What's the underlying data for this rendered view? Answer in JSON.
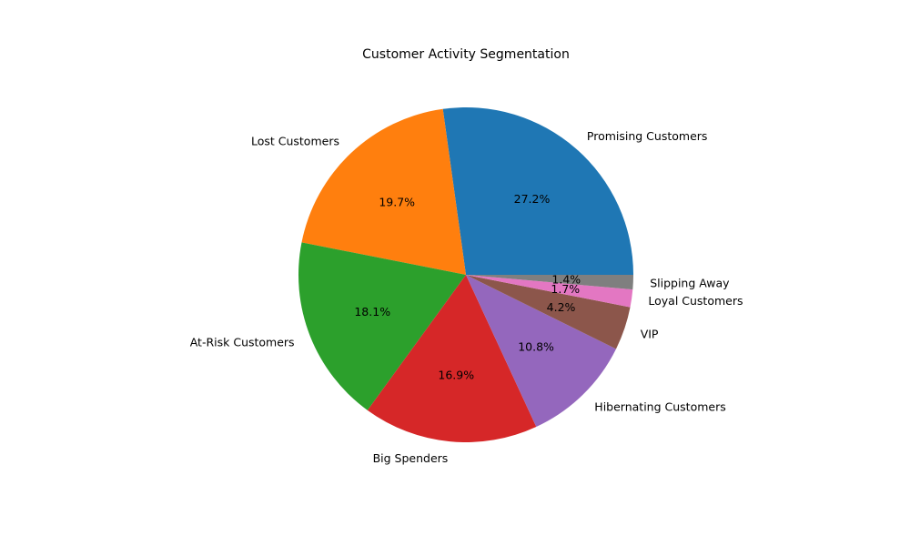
{
  "chart_data": {
    "type": "pie",
    "title": "Customer Activity Segmentation",
    "start_angle_deg": 0,
    "direction": "counterclockwise",
    "slices": [
      {
        "label": "Promising Customers",
        "value": 27.2,
        "pct_label": "27.2%",
        "color": "#1f77b4"
      },
      {
        "label": "Lost Customers",
        "value": 19.7,
        "pct_label": "19.7%",
        "color": "#ff7f0e"
      },
      {
        "label": "At-Risk Customers",
        "value": 18.1,
        "pct_label": "18.1%",
        "color": "#2ca02c"
      },
      {
        "label": "Big Spenders",
        "value": 16.9,
        "pct_label": "16.9%",
        "color": "#d62728"
      },
      {
        "label": "Hibernating Customers",
        "value": 10.8,
        "pct_label": "10.8%",
        "color": "#9467bd"
      },
      {
        "label": "VIP",
        "value": 4.2,
        "pct_label": "4.2%",
        "color": "#8c564b"
      },
      {
        "label": "Loyal Customers",
        "value": 1.7,
        "pct_label": "1.7%",
        "color": "#e377c2"
      },
      {
        "label": "Slipping Away",
        "value": 1.4,
        "pct_label": "1.4%",
        "color": "#7f7f7f"
      }
    ]
  }
}
